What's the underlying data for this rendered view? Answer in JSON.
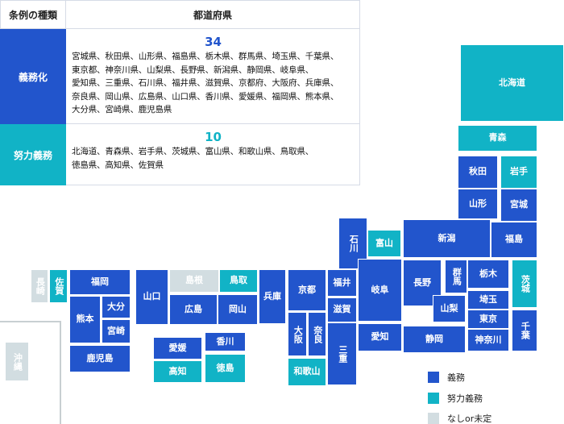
{
  "table": {
    "header_type": "条例の種類",
    "header_prefectures": "都道府県",
    "rows": [
      {
        "type": "義務化",
        "count": "34",
        "lines": [
          "宮城県、秋田県、山形県、福島県、栃木県、群馬県、埼玉県、千葉県、",
          "東京都、神奈川県、山梨県、長野県、新潟県、静岡県、岐阜県、",
          "愛知県、三重県、石川県、福井県、滋賀県、京都府、大阪府、兵庫県、",
          "奈良県、岡山県、広島県、山口県、香川県、愛媛県、福岡県、熊本県、",
          "大分県、宮崎県、鹿児島県"
        ]
      },
      {
        "type": "努力義務",
        "count": "10",
        "lines": [
          "北海道、青森県、岩手県、茨城県、富山県、和歌山県、鳥取県、",
          "徳島県、高知県、佐賀県"
        ]
      }
    ]
  },
  "colors": {
    "mandatory": "#2255cc",
    "effort": "#11b3c6",
    "none": "#d2dde1"
  },
  "map": {
    "hokkaido": "北海道",
    "aomori": "青森",
    "akita": "秋田",
    "iwate": "岩手",
    "yamagata": "山形",
    "miyagi": "宮城",
    "niigata": "新潟",
    "fukushima": "福島",
    "ishikawa": "石川",
    "toyama": "富山",
    "tochigi": "栃木",
    "ibaraki": "茨城",
    "gunma": "群馬",
    "nagano": "長野",
    "saitama": "埼玉",
    "yamanashi": "山梨",
    "tokyo": "東京",
    "chiba": "千葉",
    "kanagawa": "神奈川",
    "shizuoka": "静岡",
    "gifu": "岐阜",
    "aichi": "愛知",
    "fukui": "福井",
    "shiga": "滋賀",
    "mie": "三重",
    "kyoto": "京都",
    "osaka": "大阪",
    "nara": "奈良",
    "wakayama": "和歌山",
    "hyogo": "兵庫",
    "tottori": "鳥取",
    "shimane": "島根",
    "okayama": "岡山",
    "hiroshima": "広島",
    "yamaguchi": "山口",
    "kagawa": "香川",
    "ehime": "愛媛",
    "tokushima": "徳島",
    "kochi": "高知",
    "fukuoka": "福岡",
    "saga": "佐賀",
    "nagasaki": "長崎",
    "kumamoto": "熊本",
    "oita": "大分",
    "miyazaki": "宮崎",
    "kagoshima": "鹿児島",
    "okinawa": "沖縄"
  },
  "legend": {
    "mandatory": "義務",
    "effort": "努力義務",
    "none": "なしor未定"
  }
}
